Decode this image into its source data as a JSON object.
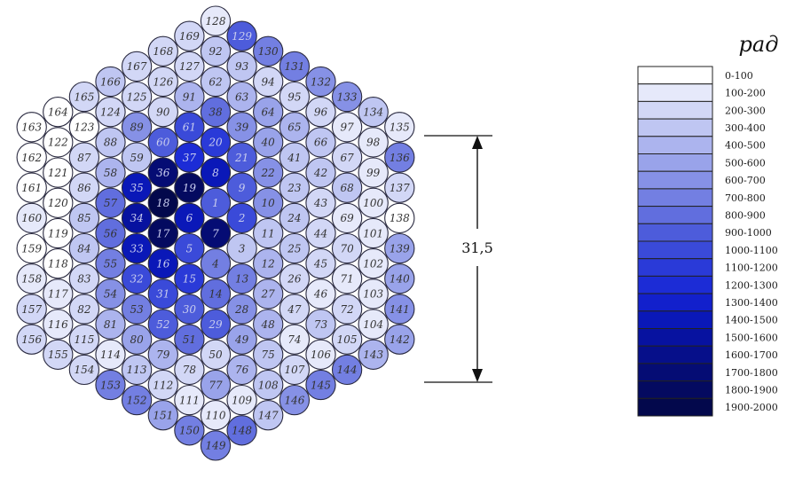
{
  "legend": {
    "unit": "рад",
    "items": [
      {
        "label": "0-100",
        "color": "#ffffff"
      },
      {
        "label": "100-200",
        "color": "#e6e9fa"
      },
      {
        "label": "200-300",
        "color": "#d2d7f6"
      },
      {
        "label": "300-400",
        "color": "#bfc6f2"
      },
      {
        "label": "400-500",
        "color": "#acb4ee"
      },
      {
        "label": "500-600",
        "color": "#99a3ea"
      },
      {
        "label": "600-700",
        "color": "#8691e6"
      },
      {
        "label": "700-800",
        "color": "#737fe2"
      },
      {
        "label": "800-900",
        "color": "#616ede"
      },
      {
        "label": "900-1000",
        "color": "#4d5cdb"
      },
      {
        "label": "1000-1100",
        "color": "#3a4ad9"
      },
      {
        "label": "1100-1200",
        "color": "#2a3ad8"
      },
      {
        "label": "1200-1300",
        "color": "#1c2cd6"
      },
      {
        "label": "1300-1400",
        "color": "#1220cc"
      },
      {
        "label": "1400-1500",
        "color": "#0a18b8"
      },
      {
        "label": "1500-1600",
        "color": "#0712a0"
      },
      {
        "label": "1600-1700",
        "color": "#060f8a"
      },
      {
        "label": "1700-1800",
        "color": "#050c74"
      },
      {
        "label": "1800-1900",
        "color": "#040a60"
      },
      {
        "label": "1900-2000",
        "color": "#03084c"
      }
    ]
  },
  "dimension": {
    "label": "31,5"
  },
  "cells": [
    {
      "n": "1",
      "ring": 1,
      "k": 0,
      "lvl": 9
    },
    {
      "n": "2",
      "ring": 1,
      "k": 1,
      "lvl": 10
    },
    {
      "n": "3",
      "ring": 1,
      "k": 2,
      "lvl": 3
    },
    {
      "n": "4",
      "ring": 1,
      "k": 3,
      "lvl": 7
    },
    {
      "n": "5",
      "ring": 1,
      "k": 4,
      "lvl": 10
    },
    {
      "n": "6",
      "ring": 1,
      "k": 5,
      "lvl": 14
    },
    {
      "n": "7",
      "ring": 0,
      "k": 0,
      "lvl": 17
    },
    {
      "n": "8",
      "ring": 2,
      "k": 0,
      "lvl": 14
    },
    {
      "n": "9",
      "ring": 2,
      "k": 1,
      "lvl": 9
    },
    {
      "n": "10",
      "ring": 2,
      "k": 2,
      "lvl": 6
    },
    {
      "n": "11",
      "ring": 2,
      "k": 3,
      "lvl": 3
    },
    {
      "n": "12",
      "ring": 2,
      "k": 4,
      "lvl": 4
    },
    {
      "n": "13",
      "ring": 2,
      "k": 5,
      "lvl": 7
    },
    {
      "n": "14",
      "ring": 2,
      "k": 6,
      "lvl": 8
    },
    {
      "n": "15",
      "ring": 2,
      "k": 7,
      "lvl": 11
    },
    {
      "n": "16",
      "ring": 2,
      "k": 8,
      "lvl": 14
    },
    {
      "n": "17",
      "ring": 2,
      "k": 9,
      "lvl": 18
    },
    {
      "n": "18",
      "ring": 2,
      "k": 10,
      "lvl": 19
    },
    {
      "n": "19",
      "ring": 2,
      "k": 11,
      "lvl": 18
    },
    {
      "n": "20",
      "ring": 3,
      "k": 0,
      "lvl": 11
    },
    {
      "n": "21",
      "ring": 3,
      "k": 1,
      "lvl": 9
    },
    {
      "n": "22",
      "ring": 3,
      "k": 2,
      "lvl": 6
    },
    {
      "n": "23",
      "ring": 3,
      "k": 3,
      "lvl": 3
    },
    {
      "n": "24",
      "ring": 3,
      "k": 4,
      "lvl": 3
    },
    {
      "n": "25",
      "ring": 3,
      "k": 5,
      "lvl": 3
    },
    {
      "n": "26",
      "ring": 3,
      "k": 6,
      "lvl": 2
    },
    {
      "n": "27",
      "ring": 3,
      "k": 7,
      "lvl": 4
    },
    {
      "n": "28",
      "ring": 3,
      "k": 8,
      "lvl": 6
    },
    {
      "n": "29",
      "ring": 3,
      "k": 9,
      "lvl": 9
    },
    {
      "n": "30",
      "ring": 3,
      "k": 10,
      "lvl": 9
    },
    {
      "n": "31",
      "ring": 3,
      "k": 11,
      "lvl": 10
    },
    {
      "n": "32",
      "ring": 3,
      "k": 12,
      "lvl": 10
    },
    {
      "n": "33",
      "ring": 3,
      "k": 13,
      "lvl": 14
    },
    {
      "n": "34",
      "ring": 3,
      "k": 14,
      "lvl": 15
    },
    {
      "n": "35",
      "ring": 3,
      "k": 15,
      "lvl": 14
    },
    {
      "n": "36",
      "ring": 3,
      "k": 16,
      "lvl": 17
    },
    {
      "n": "37",
      "ring": 3,
      "k": 17,
      "lvl": 12
    },
    {
      "n": "38",
      "ring": 4,
      "k": 0,
      "lvl": 8
    },
    {
      "n": "39",
      "ring": 4,
      "k": 1,
      "lvl": 6
    },
    {
      "n": "40",
      "ring": 4,
      "k": 2,
      "lvl": 5
    },
    {
      "n": "41",
      "ring": 4,
      "k": 3,
      "lvl": 3
    },
    {
      "n": "42",
      "ring": 4,
      "k": 4,
      "lvl": 3
    },
    {
      "n": "43",
      "ring": 4,
      "k": 5,
      "lvl": 2
    },
    {
      "n": "44",
      "ring": 4,
      "k": 6,
      "lvl": 2
    },
    {
      "n": "45",
      "ring": 4,
      "k": 7,
      "lvl": 2
    },
    {
      "n": "46",
      "ring": 4,
      "k": 8,
      "lvl": 1
    },
    {
      "n": "47",
      "ring": 4,
      "k": 9,
      "lvl": 2
    },
    {
      "n": "48",
      "ring": 4,
      "k": 10,
      "lvl": 4
    },
    {
      "n": "49",
      "ring": 4,
      "k": 11,
      "lvl": 5
    },
    {
      "n": "50",
      "ring": 4,
      "k": 12,
      "lvl": 2
    },
    {
      "n": "51",
      "ring": 4,
      "k": 13,
      "lvl": 8
    },
    {
      "n": "52",
      "ring": 4,
      "k": 14,
      "lvl": 9
    },
    {
      "n": "53",
      "ring": 4,
      "k": 15,
      "lvl": 7
    },
    {
      "n": "54",
      "ring": 4,
      "k": 16,
      "lvl": 6
    },
    {
      "n": "55",
      "ring": 4,
      "k": 17,
      "lvl": 7
    },
    {
      "n": "56",
      "ring": 4,
      "k": 18,
      "lvl": 8
    },
    {
      "n": "57",
      "ring": 4,
      "k": 19,
      "lvl": 8
    },
    {
      "n": "58",
      "ring": 4,
      "k": 20,
      "lvl": 4
    },
    {
      "n": "59",
      "ring": 4,
      "k": 21,
      "lvl": 3
    },
    {
      "n": "60",
      "ring": 4,
      "k": 22,
      "lvl": 9
    },
    {
      "n": "61",
      "ring": 4,
      "k": 23,
      "lvl": 10
    },
    {
      "n": "62",
      "ring": 5,
      "k": 0,
      "lvl": 3
    },
    {
      "n": "63",
      "ring": 5,
      "k": 1,
      "lvl": 4
    },
    {
      "n": "64",
      "ring": 5,
      "k": 2,
      "lvl": 5
    },
    {
      "n": "65",
      "ring": 5,
      "k": 3,
      "lvl": 4
    },
    {
      "n": "66",
      "ring": 5,
      "k": 4,
      "lvl": 3
    },
    {
      "n": "67",
      "ring": 5,
      "k": 5,
      "lvl": 2
    },
    {
      "n": "68",
      "ring": 5,
      "k": 6,
      "lvl": 3
    },
    {
      "n": "69",
      "ring": 5,
      "k": 7,
      "lvl": 1
    },
    {
      "n": "70",
      "ring": 5,
      "k": 8,
      "lvl": 2
    },
    {
      "n": "71",
      "ring": 5,
      "k": 9,
      "lvl": 1
    },
    {
      "n": "72",
      "ring": 5,
      "k": 10,
      "lvl": 2
    },
    {
      "n": "73",
      "ring": 5,
      "k": 11,
      "lvl": 3
    },
    {
      "n": "74",
      "ring": 5,
      "k": 12,
      "lvl": 1
    },
    {
      "n": "75",
      "ring": 5,
      "k": 13,
      "lvl": 3
    },
    {
      "n": "76",
      "ring": 5,
      "k": 14,
      "lvl": 4
    },
    {
      "n": "77",
      "ring": 5,
      "k": 15,
      "lvl": 5
    },
    {
      "n": "78",
      "ring": 5,
      "k": 16,
      "lvl": 2
    },
    {
      "n": "79",
      "ring": 5,
      "k": 17,
      "lvl": 4
    },
    {
      "n": "80",
      "ring": 5,
      "k": 18,
      "lvl": 5
    },
    {
      "n": "81",
      "ring": 5,
      "k": 19,
      "lvl": 4
    },
    {
      "n": "82",
      "ring": 5,
      "k": 20,
      "lvl": 2
    },
    {
      "n": "83",
      "ring": 5,
      "k": 21,
      "lvl": 2
    },
    {
      "n": "84",
      "ring": 5,
      "k": 22,
      "lvl": 3
    },
    {
      "n": "85",
      "ring": 5,
      "k": 23,
      "lvl": 3
    },
    {
      "n": "86",
      "ring": 5,
      "k": 24,
      "lvl": 2
    },
    {
      "n": "87",
      "ring": 5,
      "k": 25,
      "lvl": 2
    },
    {
      "n": "88",
      "ring": 5,
      "k": 26,
      "lvl": 3
    },
    {
      "n": "89",
      "ring": 5,
      "k": 27,
      "lvl": 6
    },
    {
      "n": "90",
      "ring": 5,
      "k": 28,
      "lvl": 2
    },
    {
      "n": "91",
      "ring": 5,
      "k": 29,
      "lvl": 4
    },
    {
      "n": "92",
      "ring": 6,
      "k": 0,
      "lvl": 3
    },
    {
      "n": "93",
      "ring": 6,
      "k": 1,
      "lvl": 3
    },
    {
      "n": "94",
      "ring": 6,
      "k": 2,
      "lvl": 2
    },
    {
      "n": "95",
      "ring": 6,
      "k": 3,
      "lvl": 2
    },
    {
      "n": "96",
      "ring": 6,
      "k": 4,
      "lvl": 2
    },
    {
      "n": "97",
      "ring": 6,
      "k": 5,
      "lvl": 1
    },
    {
      "n": "98",
      "ring": 6,
      "k": 6,
      "lvl": 1
    },
    {
      "n": "99",
      "ring": 6,
      "k": 7,
      "lvl": 1
    },
    {
      "n": "100",
      "ring": 6,
      "k": 8,
      "lvl": 1
    },
    {
      "n": "101",
      "ring": 6,
      "k": 9,
      "lvl": 1
    },
    {
      "n": "102",
      "ring": 6,
      "k": 10,
      "lvl": 1
    },
    {
      "n": "103",
      "ring": 6,
      "k": 11,
      "lvl": 1
    },
    {
      "n": "104",
      "ring": 6,
      "k": 12,
      "lvl": 1
    },
    {
      "n": "105",
      "ring": 6,
      "k": 13,
      "lvl": 2
    },
    {
      "n": "106",
      "ring": 6,
      "k": 14,
      "lvl": 1
    },
    {
      "n": "107",
      "ring": 6,
      "k": 15,
      "lvl": 2
    },
    {
      "n": "108",
      "ring": 6,
      "k": 16,
      "lvl": 3
    },
    {
      "n": "109",
      "ring": 6,
      "k": 17,
      "lvl": 1
    },
    {
      "n": "110",
      "ring": 6,
      "k": 18,
      "lvl": 1
    },
    {
      "n": "111",
      "ring": 6,
      "k": 19,
      "lvl": 1
    },
    {
      "n": "112",
      "ring": 6,
      "k": 20,
      "lvl": 2
    },
    {
      "n": "113",
      "ring": 6,
      "k": 21,
      "lvl": 3
    },
    {
      "n": "114",
      "ring": 6,
      "k": 22,
      "lvl": 1
    },
    {
      "n": "115",
      "ring": 6,
      "k": 23,
      "lvl": 2
    },
    {
      "n": "116",
      "ring": 6,
      "k": 24,
      "lvl": 1
    },
    {
      "n": "117",
      "ring": 6,
      "k": 25,
      "lvl": 1
    },
    {
      "n": "118",
      "ring": 6,
      "k": 26,
      "lvl": 0
    },
    {
      "n": "119",
      "ring": 6,
      "k": 27,
      "lvl": 0
    },
    {
      "n": "120",
      "ring": 6,
      "k": 28,
      "lvl": 0
    },
    {
      "n": "121",
      "ring": 6,
      "k": 29,
      "lvl": 0
    },
    {
      "n": "122",
      "ring": 6,
      "k": 30,
      "lvl": 0
    },
    {
      "n": "123",
      "ring": 6,
      "k": 31,
      "lvl": 0
    },
    {
      "n": "124",
      "ring": 6,
      "k": 32,
      "lvl": 2
    },
    {
      "n": "125",
      "ring": 6,
      "k": 33,
      "lvl": 2
    },
    {
      "n": "126",
      "ring": 6,
      "k": 34,
      "lvl": 2
    },
    {
      "n": "127",
      "ring": 6,
      "k": 35,
      "lvl": 2
    },
    {
      "n": "128",
      "ring": 7,
      "k": 0,
      "lvl": 1
    },
    {
      "n": "129",
      "ring": 7,
      "k": 1,
      "lvl": 9
    },
    {
      "n": "130",
      "ring": 7,
      "k": 2,
      "lvl": 7
    },
    {
      "n": "131",
      "ring": 7,
      "k": 3,
      "lvl": 7
    },
    {
      "n": "132",
      "ring": 7,
      "k": 4,
      "lvl": 6
    },
    {
      "n": "133",
      "ring": 7,
      "k": 5,
      "lvl": 6
    },
    {
      "n": "134",
      "ring": 7,
      "k": 6,
      "lvl": 3
    },
    {
      "n": "135",
      "ring": 7,
      "k": 7,
      "lvl": 1
    },
    {
      "n": "136",
      "ring": 7,
      "k": 8,
      "lvl": 7
    },
    {
      "n": "137",
      "ring": 7,
      "k": 9,
      "lvl": 2
    },
    {
      "n": "138",
      "ring": 7,
      "k": 10,
      "lvl": 0
    },
    {
      "n": "139",
      "ring": 7,
      "k": 11,
      "lvl": 5
    },
    {
      "n": "140",
      "ring": 7,
      "k": 12,
      "lvl": 5
    },
    {
      "n": "141",
      "ring": 7,
      "k": 13,
      "lvl": 6
    },
    {
      "n": "142",
      "ring": 7,
      "k": 14,
      "lvl": 5
    },
    {
      "n": "143",
      "ring": 7,
      "k": 15,
      "lvl": 4
    },
    {
      "n": "144",
      "ring": 7,
      "k": 16,
      "lvl": 7
    },
    {
      "n": "145",
      "ring": 7,
      "k": 17,
      "lvl": 7
    },
    {
      "n": "146",
      "ring": 7,
      "k": 18,
      "lvl": 6
    },
    {
      "n": "147",
      "ring": 7,
      "k": 19,
      "lvl": 3
    },
    {
      "n": "148",
      "ring": 7,
      "k": 20,
      "lvl": 8
    },
    {
      "n": "149",
      "ring": 7,
      "k": 21,
      "lvl": 7
    },
    {
      "n": "150",
      "ring": 7,
      "k": 22,
      "lvl": 7
    },
    {
      "n": "151",
      "ring": 7,
      "k": 23,
      "lvl": 5
    },
    {
      "n": "152",
      "ring": 7,
      "k": 24,
      "lvl": 7
    },
    {
      "n": "153",
      "ring": 7,
      "k": 25,
      "lvl": 7
    },
    {
      "n": "154",
      "ring": 7,
      "k": 26,
      "lvl": 2
    },
    {
      "n": "155",
      "ring": 7,
      "k": 27,
      "lvl": 2
    },
    {
      "n": "156",
      "ring": 7,
      "k": 28,
      "lvl": 2
    },
    {
      "n": "157",
      "ring": 7,
      "k": 29,
      "lvl": 2
    },
    {
      "n": "158",
      "ring": 7,
      "k": 30,
      "lvl": 1
    },
    {
      "n": "159",
      "ring": 7,
      "k": 31,
      "lvl": 0
    },
    {
      "n": "160",
      "ring": 7,
      "k": 32,
      "lvl": 1
    },
    {
      "n": "161",
      "ring": 7,
      "k": 33,
      "lvl": 0
    },
    {
      "n": "162",
      "ring": 7,
      "k": 34,
      "lvl": 0
    },
    {
      "n": "163",
      "ring": 7,
      "k": 35,
      "lvl": 0
    },
    {
      "n": "164",
      "ring": 7,
      "k": 36,
      "lvl": 0
    },
    {
      "n": "165",
      "ring": 7,
      "k": 37,
      "lvl": 2
    },
    {
      "n": "166",
      "ring": 7,
      "k": 38,
      "lvl": 3
    },
    {
      "n": "167",
      "ring": 7,
      "k": 39,
      "lvl": 2
    },
    {
      "n": "168",
      "ring": 7,
      "k": 40,
      "lvl": 2
    },
    {
      "n": "169",
      "ring": 7,
      "k": 41,
      "lvl": 2
    }
  ]
}
